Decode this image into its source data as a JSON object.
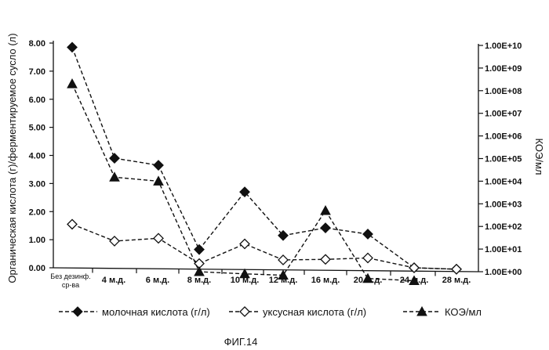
{
  "chart_data": {
    "type": "line",
    "categories": [
      "Без дезинф. ср-ва",
      "4 м.д.",
      "6 м.д.",
      "8 м.д.",
      "10 м.д.",
      "12 м.д.",
      "16 м.д.",
      "20 м.д.",
      "24 м.д.",
      "28 м.д."
    ],
    "category_lines": [
      [
        "Без дезинф.",
        "ср-ва"
      ],
      [
        "4 м.д."
      ],
      [
        "6 м.д."
      ],
      [
        "8 м.д."
      ],
      [
        "10 м.д."
      ],
      [
        "12 м.д."
      ],
      [
        "16 м.д."
      ],
      [
        "20 м.д."
      ],
      [
        "24 м.д."
      ],
      [
        "28 м.д."
      ]
    ],
    "ylabel": "Органическая кислота (г)/ферментируемое сусло (л)",
    "y2label": "КОЭ/мл",
    "ylim": [
      0,
      8
    ],
    "yticks": [
      "0.00",
      "1.00",
      "2.00",
      "3.00",
      "4.00",
      "5.00",
      "6.00",
      "7.00",
      "8.00"
    ],
    "y2_scale": "log",
    "y2ticks": [
      "1.00E+00",
      "1.00E+01",
      "1.00E+02",
      "1.00E+03",
      "1.00E+04",
      "1.00E+05",
      "1.00E+06",
      "1.00E+07",
      "1.00E+08",
      "1.00E+09",
      "1.00E+10"
    ],
    "series": [
      {
        "name": "молочная кислота (г/л)",
        "axis": "left",
        "marker": "diamond-filled",
        "values": [
          7.85,
          3.9,
          3.65,
          0.65,
          2.7,
          1.15,
          1.42,
          1.2,
          0.0,
          -0.05
        ]
      },
      {
        "name": "уксусная кислота (г/л)",
        "axis": "left",
        "marker": "diamond-open",
        "values": [
          1.55,
          0.95,
          1.05,
          0.15,
          0.85,
          0.28,
          0.3,
          0.35,
          0.0,
          -0.05
        ]
      },
      {
        "name": "КОЭ/мл",
        "axis": "right",
        "marker": "triangle",
        "values": [
          200000000,
          15000,
          10000,
          1,
          0.8,
          0.7,
          500,
          0.5,
          0.4,
          null
        ]
      }
    ],
    "caption": "ФИГ.14"
  }
}
